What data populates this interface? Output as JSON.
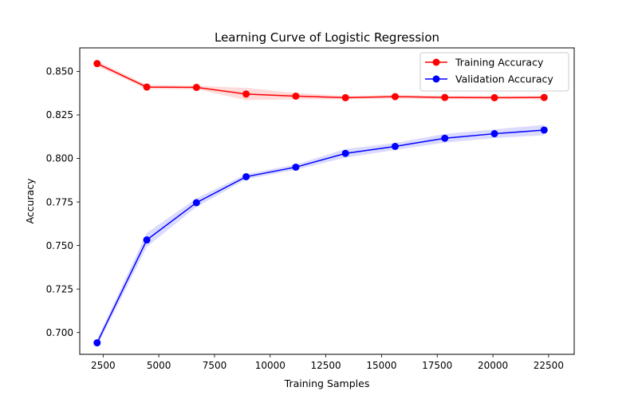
{
  "chart_data": {
    "type": "line",
    "title": "Learning Curve of Logistic Regression",
    "xlabel": "Training Samples",
    "ylabel": "Accuracy",
    "xlim": [
      1450,
      23650
    ],
    "ylim": [
      0.6875,
      0.8635
    ],
    "xticks": [
      2500,
      5000,
      7500,
      10000,
      12500,
      15000,
      17500,
      20000,
      22500
    ],
    "xtick_labels": [
      "2500",
      "5000",
      "7500",
      "10000",
      "12500",
      "15000",
      "17500",
      "20000",
      "22500"
    ],
    "yticks": [
      0.7,
      0.725,
      0.75,
      0.775,
      0.8,
      0.825,
      0.85
    ],
    "ytick_labels": [
      "0.700",
      "0.725",
      "0.750",
      "0.775",
      "0.800",
      "0.825",
      "0.850"
    ],
    "x": [
      2230,
      4460,
      6690,
      8920,
      11150,
      13380,
      15610,
      17840,
      20070,
      22300
    ],
    "grid": false,
    "legend_position": "top-right",
    "series": [
      {
        "name": "Training Accuracy",
        "color": "#ff0000",
        "band_color": "#ffd2d2",
        "values": [
          0.8545,
          0.841,
          0.8408,
          0.837,
          0.8358,
          0.8349,
          0.8355,
          0.835,
          0.8349,
          0.835
        ],
        "std": [
          0.0015,
          0.0012,
          0.001,
          0.0035,
          0.0018,
          0.001,
          0.001,
          0.001,
          0.001,
          0.001
        ]
      },
      {
        "name": "Validation Accuracy",
        "color": "#0000ff",
        "band_color": "#d2d2ff",
        "values": [
          0.6941,
          0.7532,
          0.7746,
          0.7895,
          0.795,
          0.8029,
          0.8069,
          0.8116,
          0.8142,
          0.8163
        ],
        "std": [
          0.002,
          0.004,
          0.0025,
          0.0015,
          0.0015,
          0.0025,
          0.002,
          0.0025,
          0.0025,
          0.003
        ]
      }
    ]
  }
}
